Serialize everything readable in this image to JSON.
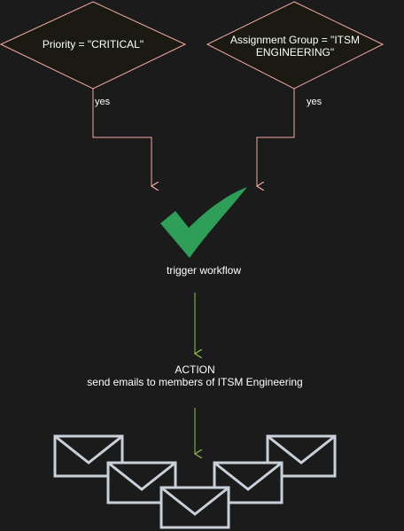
{
  "nodes": {
    "condition_priority": {
      "text": "Priority = \"CRITICAL\""
    },
    "condition_group": {
      "line1": "Assignment Group = \"ITSM",
      "line2": "ENGINEERING\""
    },
    "trigger": {
      "text": "trigger workflow"
    },
    "action": {
      "title": "ACTION",
      "description": "send emails to members of ITSM Engineering"
    }
  },
  "edges": {
    "yes_left": "yes",
    "yes_right": "yes"
  },
  "icons": {
    "trigger_icon": "checkmark-icon",
    "email_icons": [
      "envelope-icon",
      "envelope-icon",
      "envelope-icon",
      "envelope-icon",
      "envelope-icon"
    ]
  },
  "colors": {
    "background": "#1b1b1b",
    "decision_fill": "#1a1a12",
    "decision_stroke": "#f5a9a4",
    "yes_edge": "#f5a9a4",
    "action_edge": "#8bc34a",
    "checkmark": "#2e9e58",
    "envelope_stroke": "#c8d0da"
  }
}
